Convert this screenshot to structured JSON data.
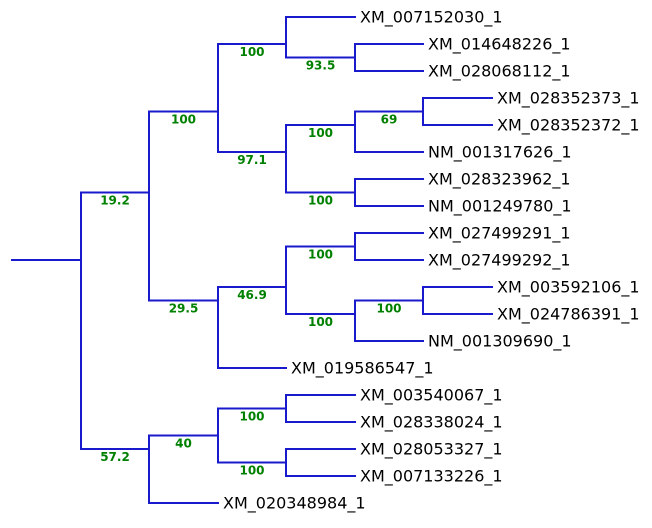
{
  "figure": {
    "kind": "phylogenetic-tree",
    "background_color": "#ffffff",
    "branch_color": "#1a1acd",
    "leaf_label_color": "#000000",
    "confidence_label_color": "#008000",
    "leaf_count": 19
  },
  "leaves_in_order": [
    "XM_007152030_1",
    "XM_014648226_1",
    "XM_028068112_1",
    "XM_028352373_1",
    "XM_028352372_1",
    "NM_001317626_1",
    "XM_028323962_1",
    "NM_001249780_1",
    "XM_027499291_1",
    "XM_027499292_1",
    "XM_003592106_1",
    "XM_024786391_1",
    "NM_001309690_1",
    "XM_019586547_1",
    "XM_003540067_1",
    "XM_028338024_1",
    "XM_028053327_1",
    "XM_007133226_1",
    "XM_020348984_1"
  ],
  "support_values": [
    "19.2",
    "100",
    "100",
    "93.5",
    "97.1",
    "100",
    "69",
    "100",
    "29.5",
    "46.9",
    "100",
    "100",
    "100",
    "57.2",
    "40",
    "100",
    "100"
  ],
  "tree": {
    "confidence": "",
    "children": [
      {
        "confidence": "19.2",
        "children": [
          {
            "confidence": "100",
            "children": [
              {
                "confidence": "100",
                "children": [
                  {
                    "name": "XM_007152030_1"
                  },
                  {
                    "confidence": "93.5",
                    "children": [
                      {
                        "name": "XM_014648226_1"
                      },
                      {
                        "name": "XM_028068112_1"
                      }
                    ]
                  }
                ]
              },
              {
                "confidence": "97.1",
                "children": [
                  {
                    "confidence": "100",
                    "children": [
                      {
                        "confidence": "69",
                        "children": [
                          {
                            "name": "XM_028352373_1"
                          },
                          {
                            "name": "XM_028352372_1"
                          }
                        ]
                      },
                      {
                        "name": "NM_001317626_1"
                      }
                    ]
                  },
                  {
                    "confidence": "100",
                    "children": [
                      {
                        "name": "XM_028323962_1"
                      },
                      {
                        "name": "NM_001249780_1"
                      }
                    ]
                  }
                ]
              }
            ]
          },
          {
            "confidence": "29.5",
            "children": [
              {
                "confidence": "46.9",
                "children": [
                  {
                    "confidence": "100",
                    "children": [
                      {
                        "name": "XM_027499291_1"
                      },
                      {
                        "name": "XM_027499292_1"
                      }
                    ]
                  },
                  {
                    "confidence": "100",
                    "children": [
                      {
                        "confidence": "100",
                        "children": [
                          {
                            "name": "XM_003592106_1"
                          },
                          {
                            "name": "XM_024786391_1"
                          }
                        ]
                      },
                      {
                        "name": "NM_001309690_1"
                      }
                    ]
                  }
                ]
              },
              {
                "name": "XM_019586547_1"
              }
            ]
          }
        ]
      },
      {
        "confidence": "57.2",
        "children": [
          {
            "confidence": "40",
            "children": [
              {
                "confidence": "100",
                "children": [
                  {
                    "name": "XM_003540067_1"
                  },
                  {
                    "name": "XM_028338024_1"
                  }
                ]
              },
              {
                "confidence": "100",
                "children": [
                  {
                    "name": "XM_028053327_1"
                  },
                  {
                    "name": "XM_007133226_1"
                  }
                ]
              }
            ]
          },
          {
            "name": "XM_020348984_1"
          }
        ]
      }
    ]
  }
}
